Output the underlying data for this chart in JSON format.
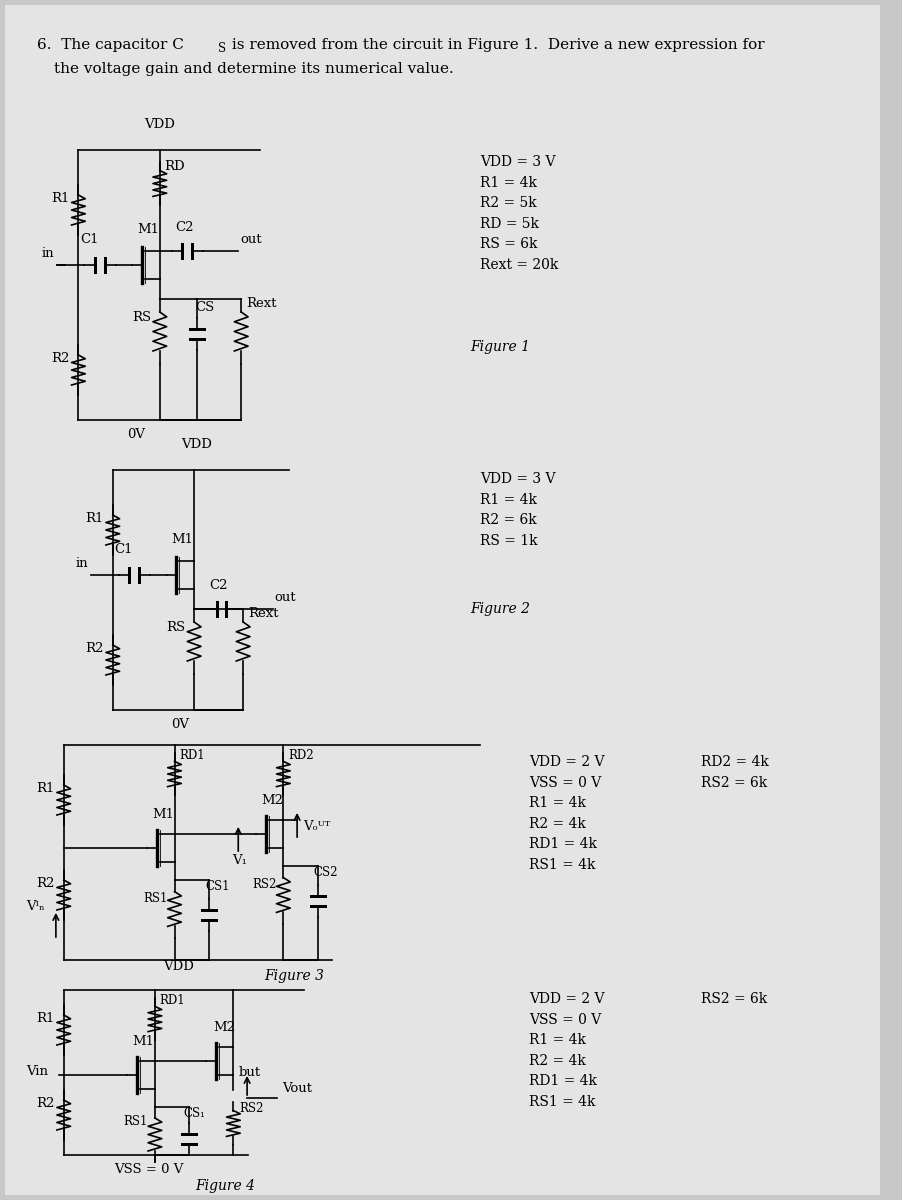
{
  "bg_color": "#c8c8c8",
  "page_color": "#e4e4e4",
  "line_color": "black",
  "text_color": "black",
  "title_line1": "6.  The capacitor C",
  "title_cs": "S",
  "title_line1b": " is removed from the circuit in Figure 1.  Derive a new expression for",
  "title_line2": "the voltage gain and determine its numerical value.",
  "fig1_params": "VDD = 3 V\nR1 = 4k\nR2 = 5k\nRD = 5k\nRS = 6k\nRext = 20k",
  "fig1_label": "Figure 1",
  "fig2_params": "VDD = 3 V\nR1 = 4k\nR2 = 6k\nRS = 1k",
  "fig2_label": "Figure 2",
  "fig3_params_col1": "VDD = 2 V\nVSS = 0 V\nR1 = 4k\nR2 = 4k\nRD1 = 4k\nRS1 = 4k",
  "fig3_params_col2": "RD2 = 4k\nRS2 = 6k",
  "fig3_label": "Figure 3",
  "fig4_params_col1": "VDD = 2 V\nVSS = 0 V\nR1 = 4k\nR2 = 4k\nRD1 = 4k\nRS1 = 4k",
  "fig4_params_col2": "RS2 = 6k",
  "fig4_label": "Figure 4"
}
